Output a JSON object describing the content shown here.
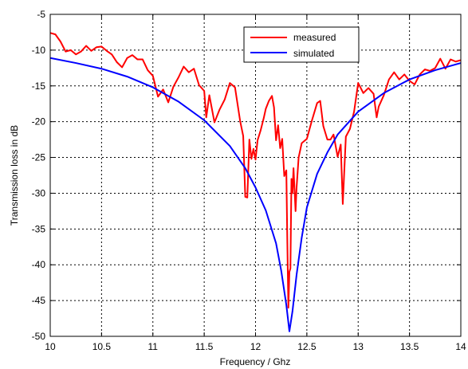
{
  "chart_data": {
    "type": "line",
    "title": "",
    "xlabel": "Frequency / Ghz",
    "ylabel": "Transmission loss in dB",
    "xlim": [
      10,
      14
    ],
    "ylim": [
      -50,
      -5
    ],
    "xticks": [
      "10",
      "10.5",
      "11",
      "11.5",
      "12",
      "12.5",
      "13",
      "13.5",
      "14"
    ],
    "yticks": [
      "-5",
      "-10",
      "-15",
      "-20",
      "-25",
      "-30",
      "-35",
      "-40",
      "-45",
      "-50"
    ],
    "grid": true,
    "legend_position": "top-right",
    "series": [
      {
        "name": "measured",
        "color": "#ff0000",
        "points": [
          [
            10.0,
            -7.6
          ],
          [
            10.05,
            -7.8
          ],
          [
            10.1,
            -8.8
          ],
          [
            10.15,
            -10.2
          ],
          [
            10.2,
            -10.0
          ],
          [
            10.25,
            -10.6
          ],
          [
            10.3,
            -10.2
          ],
          [
            10.35,
            -9.4
          ],
          [
            10.4,
            -10.1
          ],
          [
            10.45,
            -9.6
          ],
          [
            10.5,
            -9.5
          ],
          [
            10.55,
            -10.1
          ],
          [
            10.6,
            -10.6
          ],
          [
            10.65,
            -11.7
          ],
          [
            10.7,
            -12.4
          ],
          [
            10.75,
            -11.1
          ],
          [
            10.8,
            -10.7
          ],
          [
            10.85,
            -11.3
          ],
          [
            10.9,
            -11.3
          ],
          [
            10.95,
            -12.8
          ],
          [
            11.0,
            -13.6
          ],
          [
            11.05,
            -16.5
          ],
          [
            11.1,
            -15.5
          ],
          [
            11.15,
            -17.3
          ],
          [
            11.2,
            -15.1
          ],
          [
            11.25,
            -13.8
          ],
          [
            11.3,
            -12.3
          ],
          [
            11.35,
            -13.1
          ],
          [
            11.4,
            -12.6
          ],
          [
            11.45,
            -14.9
          ],
          [
            11.5,
            -15.7
          ],
          [
            11.52,
            -19.4
          ],
          [
            11.55,
            -16.3
          ],
          [
            11.6,
            -20.1
          ],
          [
            11.65,
            -18.3
          ],
          [
            11.7,
            -16.9
          ],
          [
            11.75,
            -14.6
          ],
          [
            11.8,
            -15.2
          ],
          [
            11.85,
            -19.9
          ],
          [
            11.88,
            -22.0
          ],
          [
            11.9,
            -30.5
          ],
          [
            11.92,
            -30.6
          ],
          [
            11.94,
            -22.5
          ],
          [
            11.96,
            -25.2
          ],
          [
            11.98,
            -23.8
          ],
          [
            12.0,
            -25.3
          ],
          [
            12.02,
            -22.6
          ],
          [
            12.05,
            -21.2
          ],
          [
            12.08,
            -19.5
          ],
          [
            12.1,
            -18.2
          ],
          [
            12.13,
            -17.1
          ],
          [
            12.16,
            -16.4
          ],
          [
            12.18,
            -18.0
          ],
          [
            12.2,
            -22.6
          ],
          [
            12.22,
            -20.5
          ],
          [
            12.24,
            -23.7
          ],
          [
            12.26,
            -22.4
          ],
          [
            12.28,
            -27.6
          ],
          [
            12.3,
            -26.8
          ],
          [
            12.31,
            -37.0
          ],
          [
            12.32,
            -46.0
          ],
          [
            12.33,
            -41.0
          ],
          [
            12.34,
            -40.5
          ],
          [
            12.35,
            -28.0
          ],
          [
            12.36,
            -30.0
          ],
          [
            12.37,
            -26.5
          ],
          [
            12.38,
            -29.5
          ],
          [
            12.39,
            -32.5
          ],
          [
            12.4,
            -29.2
          ],
          [
            12.42,
            -25.0
          ],
          [
            12.45,
            -23.0
          ],
          [
            12.5,
            -22.4
          ],
          [
            12.55,
            -19.8
          ],
          [
            12.6,
            -17.4
          ],
          [
            12.63,
            -17.1
          ],
          [
            12.66,
            -20.6
          ],
          [
            12.7,
            -22.5
          ],
          [
            12.73,
            -22.5
          ],
          [
            12.76,
            -21.8
          ],
          [
            12.8,
            -24.9
          ],
          [
            12.83,
            -23.2
          ],
          [
            12.85,
            -31.5
          ],
          [
            12.88,
            -22.1
          ],
          [
            12.92,
            -21.0
          ],
          [
            12.96,
            -18.6
          ],
          [
            13.0,
            -14.6
          ],
          [
            13.05,
            -16.0
          ],
          [
            13.1,
            -15.3
          ],
          [
            13.15,
            -16.1
          ],
          [
            13.18,
            -19.4
          ],
          [
            13.2,
            -17.9
          ],
          [
            13.25,
            -16.3
          ],
          [
            13.3,
            -14.1
          ],
          [
            13.35,
            -13.1
          ],
          [
            13.4,
            -14.1
          ],
          [
            13.45,
            -13.4
          ],
          [
            13.5,
            -14.3
          ],
          [
            13.55,
            -14.8
          ],
          [
            13.6,
            -13.4
          ],
          [
            13.65,
            -12.7
          ],
          [
            13.7,
            -12.9
          ],
          [
            13.75,
            -12.5
          ],
          [
            13.8,
            -11.2
          ],
          [
            13.85,
            -12.6
          ],
          [
            13.9,
            -11.3
          ],
          [
            13.95,
            -11.6
          ],
          [
            14.0,
            -11.4
          ]
        ]
      },
      {
        "name": "simulated",
        "color": "#0000ff",
        "points": [
          [
            10.0,
            -11.1
          ],
          [
            10.25,
            -11.8
          ],
          [
            10.5,
            -12.6
          ],
          [
            10.75,
            -13.7
          ],
          [
            11.0,
            -15.2
          ],
          [
            11.25,
            -17.2
          ],
          [
            11.5,
            -19.8
          ],
          [
            11.75,
            -23.4
          ],
          [
            11.9,
            -26.5
          ],
          [
            12.0,
            -29.2
          ],
          [
            12.1,
            -32.4
          ],
          [
            12.2,
            -37.0
          ],
          [
            12.25,
            -40.8
          ],
          [
            12.3,
            -45.6
          ],
          [
            12.33,
            -49.3
          ],
          [
            12.36,
            -46.5
          ],
          [
            12.4,
            -41.4
          ],
          [
            12.45,
            -36.2
          ],
          [
            12.5,
            -32.0
          ],
          [
            12.6,
            -27.3
          ],
          [
            12.7,
            -24.3
          ],
          [
            12.8,
            -21.8
          ],
          [
            13.0,
            -18.6
          ],
          [
            13.25,
            -16.0
          ],
          [
            13.5,
            -14.1
          ],
          [
            13.75,
            -12.8
          ],
          [
            14.0,
            -11.8
          ]
        ]
      }
    ]
  }
}
